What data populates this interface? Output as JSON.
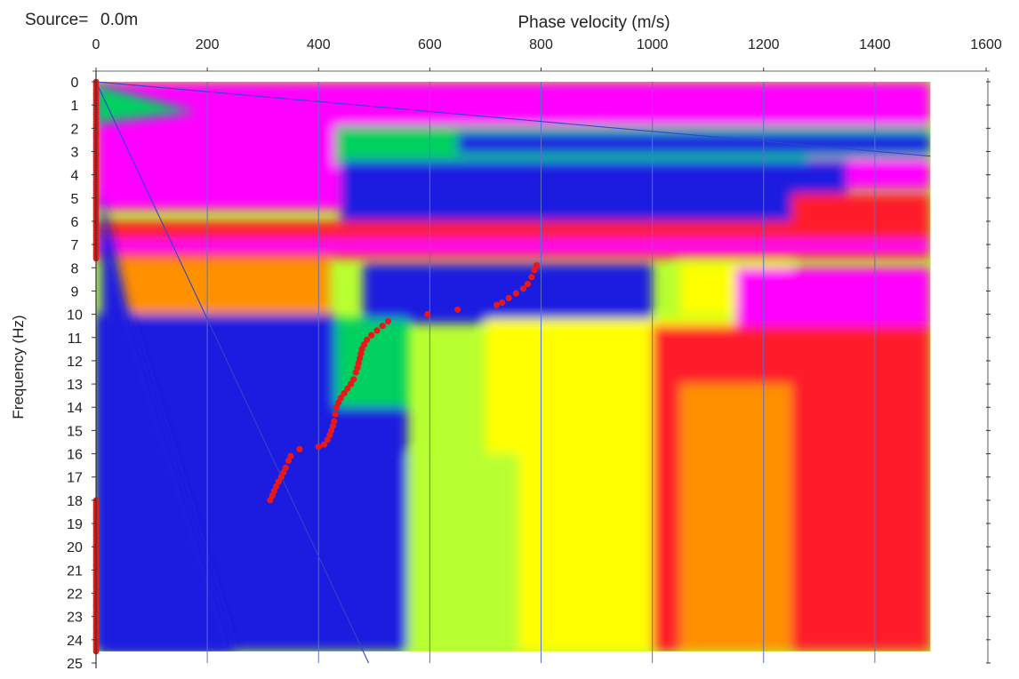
{
  "source_label": "Source=",
  "source_value": "0.0m",
  "chart_data": {
    "type": "heatmap",
    "title": "",
    "xlabel": "Phase velocity (m/s)",
    "ylabel": "Frequency (Hz)",
    "xlim": [
      0,
      1600
    ],
    "ylim": [
      0,
      25
    ],
    "x_ticks": [
      "0",
      "200",
      "400",
      "600",
      "800",
      "1000",
      "1200",
      "1400",
      "1600"
    ],
    "y_ticks": [
      "0",
      "1",
      "2",
      "3",
      "4",
      "5",
      "6",
      "7",
      "8",
      "9",
      "10",
      "11",
      "12",
      "13",
      "14",
      "15",
      "16",
      "17",
      "18",
      "19",
      "20",
      "21",
      "22",
      "23",
      "24",
      "25"
    ],
    "x_axis_position": "top",
    "grid": true,
    "data_extent": {
      "velocity_max": 1500,
      "frequency_max": 24.5
    },
    "colormap": [
      "#1a1ee0",
      "#00d060",
      "#b8ff30",
      "#ffff00",
      "#ff9000",
      "#ff1a2a",
      "#ff00ff"
    ],
    "picks_color": "#e81818",
    "aliasing_line_color": "#3344cc",
    "aliasing_lines": [
      {
        "from": [
          0,
          0
        ],
        "to": [
          1500,
          3.2
        ]
      },
      {
        "from": [
          0,
          0
        ],
        "to": [
          490,
          25
        ]
      }
    ],
    "picks": [
      {
        "velocity": 792,
        "frequency": 7.9
      },
      {
        "velocity": 788,
        "frequency": 8.1
      },
      {
        "velocity": 783,
        "frequency": 8.4
      },
      {
        "velocity": 776,
        "frequency": 8.7
      },
      {
        "velocity": 768,
        "frequency": 8.9
      },
      {
        "velocity": 755,
        "frequency": 9.1
      },
      {
        "velocity": 742,
        "frequency": 9.3
      },
      {
        "velocity": 730,
        "frequency": 9.5
      },
      {
        "velocity": 720,
        "frequency": 9.6
      },
      {
        "velocity": 650,
        "frequency": 9.8
      },
      {
        "velocity": 596,
        "frequency": 10.0
      },
      {
        "velocity": 525,
        "frequency": 10.3
      },
      {
        "velocity": 515,
        "frequency": 10.5
      },
      {
        "velocity": 505,
        "frequency": 10.7
      },
      {
        "velocity": 495,
        "frequency": 10.9
      },
      {
        "velocity": 487,
        "frequency": 11.1
      },
      {
        "velocity": 482,
        "frequency": 11.3
      },
      {
        "velocity": 478,
        "frequency": 11.5
      },
      {
        "velocity": 476,
        "frequency": 11.7
      },
      {
        "velocity": 474,
        "frequency": 11.9
      },
      {
        "velocity": 472,
        "frequency": 12.1
      },
      {
        "velocity": 470,
        "frequency": 12.3
      },
      {
        "velocity": 467,
        "frequency": 12.5
      },
      {
        "velocity": 463,
        "frequency": 12.8
      },
      {
        "velocity": 458,
        "frequency": 13.0
      },
      {
        "velocity": 452,
        "frequency": 13.2
      },
      {
        "velocity": 446,
        "frequency": 13.4
      },
      {
        "velocity": 440,
        "frequency": 13.6
      },
      {
        "velocity": 436,
        "frequency": 13.8
      },
      {
        "velocity": 432,
        "frequency": 14.0
      },
      {
        "velocity": 430,
        "frequency": 14.3
      },
      {
        "velocity": 428,
        "frequency": 14.6
      },
      {
        "velocity": 426,
        "frequency": 14.8
      },
      {
        "velocity": 423,
        "frequency": 15.0
      },
      {
        "velocity": 420,
        "frequency": 15.2
      },
      {
        "velocity": 416,
        "frequency": 15.4
      },
      {
        "velocity": 410,
        "frequency": 15.6
      },
      {
        "velocity": 400,
        "frequency": 15.7
      },
      {
        "velocity": 366,
        "frequency": 15.8
      },
      {
        "velocity": 350,
        "frequency": 16.1
      },
      {
        "velocity": 346,
        "frequency": 16.3
      },
      {
        "velocity": 341,
        "frequency": 16.6
      },
      {
        "velocity": 337,
        "frequency": 16.8
      },
      {
        "velocity": 333,
        "frequency": 17.0
      },
      {
        "velocity": 328,
        "frequency": 17.2
      },
      {
        "velocity": 324,
        "frequency": 17.4
      },
      {
        "velocity": 320,
        "frequency": 17.6
      },
      {
        "velocity": 317,
        "frequency": 17.8
      },
      {
        "velocity": 313,
        "frequency": 18.0
      }
    ],
    "axis_picks": {
      "velocity": 0,
      "frequency_ranges": [
        [
          0,
          7.6
        ],
        [
          18.0,
          24.5
        ]
      ]
    },
    "bands": [
      {
        "name": "top-magenta",
        "fmin": 0,
        "fmax": 2.0,
        "vmin": 0,
        "vmax": 1500,
        "color": "#ff00ff"
      },
      {
        "name": "blue-ridge-2-3",
        "fmin": 2.1,
        "fmax": 3.2,
        "vmin": 600,
        "vmax": 1500,
        "color": "#1a1ee0"
      },
      {
        "name": "green-2-3",
        "fmin": 2.0,
        "fmax": 3.4,
        "vmin": 480,
        "vmax": 1500,
        "color": "#00d060"
      },
      {
        "name": "left-magenta-2-5",
        "fmin": 2.0,
        "fmax": 5.4,
        "vmin": 0,
        "vmax": 420,
        "color": "#ff00ff"
      },
      {
        "name": "blue-3-6",
        "fmin": 3.4,
        "fmax": 6.2,
        "vmin": 420,
        "vmax": 1400,
        "color": "#1a1ee0"
      },
      {
        "name": "band-7",
        "fmin": 6.7,
        "fmax": 7.4,
        "vmin": 0,
        "vmax": 1500,
        "color": "#ff00ff"
      },
      {
        "name": "blue-8-10",
        "fmin": 7.8,
        "fmax": 10.2,
        "vmin": 500,
        "vmax": 1000,
        "color": "#1a1ee0"
      },
      {
        "name": "right-magenta-8-17",
        "fmin": 8.0,
        "fmax": 17.0,
        "vmin": 1200,
        "vmax": 1500,
        "color": "#ff00ff"
      },
      {
        "name": "red-high-right",
        "fmin": 10.0,
        "fmax": 24.5,
        "vmin": 1050,
        "vmax": 1500,
        "color": "#ff1a2a"
      },
      {
        "name": "yellow-mid",
        "fmin": 10.0,
        "fmax": 24.5,
        "vmin": 700,
        "vmax": 1200,
        "color": "#ffff00"
      },
      {
        "name": "blue-lower-left",
        "fmin": 10.0,
        "fmax": 24.5,
        "vmin": 0,
        "vmax": 450,
        "color": "#1a1ee0"
      }
    ]
  }
}
